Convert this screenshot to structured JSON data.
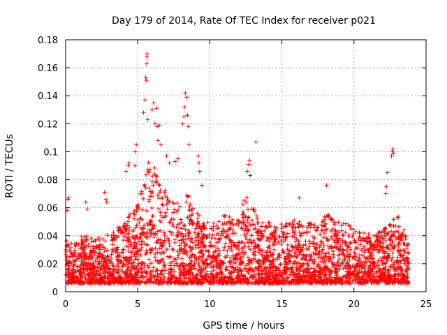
{
  "chart_data": {
    "type": "scatter",
    "title": "Day 179 of 2014, Rate Of TEC Index for receiver p021",
    "xlabel": "GPS time / hours",
    "ylabel": "ROTI / TECUs",
    "xlim": [
      0,
      25
    ],
    "ylim": [
      0,
      0.18
    ],
    "xticks": [
      0,
      5,
      10,
      15,
      20,
      25
    ],
    "yticks": [
      0,
      0.02,
      0.04,
      0.06,
      0.08,
      0.1,
      0.12,
      0.14,
      0.16,
      0.18
    ],
    "ytick_labels": [
      "0",
      "0.02",
      "0.04",
      "0.06",
      "0.08",
      "0.1",
      "0.12",
      "0.14",
      "0.16",
      "0.18"
    ],
    "grid": true,
    "marker": "+",
    "color": "#ff0000",
    "envelope": {
      "hours": [
        0,
        0.5,
        1,
        1.5,
        2,
        2.5,
        3,
        3.5,
        4,
        4.5,
        5,
        5.5,
        6,
        6.5,
        7,
        7.5,
        8,
        8.5,
        9,
        9.5,
        10,
        10.5,
        11,
        11.5,
        12,
        12.5,
        13,
        13.5,
        14,
        14.5,
        15,
        15.5,
        16,
        16.5,
        17,
        17.5,
        18,
        18.5,
        19,
        19.5,
        20,
        20.5,
        21,
        21.5,
        22,
        22.5,
        23,
        23.5,
        23.8
      ],
      "typical_max": [
        0.038,
        0.036,
        0.04,
        0.04,
        0.038,
        0.04,
        0.042,
        0.045,
        0.05,
        0.058,
        0.065,
        0.09,
        0.095,
        0.085,
        0.07,
        0.068,
        0.065,
        0.07,
        0.06,
        0.05,
        0.05,
        0.05,
        0.055,
        0.055,
        0.052,
        0.07,
        0.06,
        0.05,
        0.05,
        0.048,
        0.05,
        0.05,
        0.052,
        0.048,
        0.05,
        0.05,
        0.055,
        0.055,
        0.055,
        0.05,
        0.045,
        0.042,
        0.042,
        0.042,
        0.045,
        0.048,
        0.055,
        0.045,
        0.04
      ]
    },
    "outliers": [
      {
        "x": 0.1,
        "y": 0.058
      },
      {
        "x": 0.15,
        "y": 0.066
      },
      {
        "x": 0.2,
        "y": 0.067
      },
      {
        "x": 1.4,
        "y": 0.064
      },
      {
        "x": 1.5,
        "y": 0.059
      },
      {
        "x": 2.7,
        "y": 0.071
      },
      {
        "x": 2.8,
        "y": 0.066
      },
      {
        "x": 2.85,
        "y": 0.064
      },
      {
        "x": 4.2,
        "y": 0.086
      },
      {
        "x": 4.35,
        "y": 0.09
      },
      {
        "x": 4.4,
        "y": 0.092
      },
      {
        "x": 4.8,
        "y": 0.09
      },
      {
        "x": 4.85,
        "y": 0.1
      },
      {
        "x": 4.9,
        "y": 0.105
      },
      {
        "x": 5.4,
        "y": 0.128
      },
      {
        "x": 5.5,
        "y": 0.137
      },
      {
        "x": 5.55,
        "y": 0.153
      },
      {
        "x": 5.6,
        "y": 0.151
      },
      {
        "x": 5.62,
        "y": 0.163
      },
      {
        "x": 5.63,
        "y": 0.168
      },
      {
        "x": 5.65,
        "y": 0.17
      },
      {
        "x": 5.7,
        "y": 0.123
      },
      {
        "x": 6.0,
        "y": 0.13
      },
      {
        "x": 6.1,
        "y": 0.135
      },
      {
        "x": 6.2,
        "y": 0.12
      },
      {
        "x": 6.3,
        "y": 0.131
      },
      {
        "x": 6.35,
        "y": 0.118
      },
      {
        "x": 6.5,
        "y": 0.119
      },
      {
        "x": 6.4,
        "y": 0.108
      },
      {
        "x": 6.6,
        "y": 0.105
      },
      {
        "x": 7.0,
        "y": 0.097
      },
      {
        "x": 7.2,
        "y": 0.092
      },
      {
        "x": 7.6,
        "y": 0.093
      },
      {
        "x": 7.8,
        "y": 0.095
      },
      {
        "x": 8.1,
        "y": 0.12
      },
      {
        "x": 8.2,
        "y": 0.125
      },
      {
        "x": 8.25,
        "y": 0.132
      },
      {
        "x": 8.3,
        "y": 0.142
      },
      {
        "x": 8.4,
        "y": 0.139
      },
      {
        "x": 8.45,
        "y": 0.126
      },
      {
        "x": 8.5,
        "y": 0.118
      },
      {
        "x": 8.55,
        "y": 0.105
      },
      {
        "x": 9.2,
        "y": 0.097
      },
      {
        "x": 9.25,
        "y": 0.092
      },
      {
        "x": 9.3,
        "y": 0.086
      },
      {
        "x": 9.45,
        "y": 0.076
      },
      {
        "x": 12.6,
        "y": 0.086
      },
      {
        "x": 12.7,
        "y": 0.091
      },
      {
        "x": 12.75,
        "y": 0.094
      },
      {
        "x": 12.8,
        "y": 0.083
      },
      {
        "x": 13.2,
        "y": 0.107
      },
      {
        "x": 16.2,
        "y": 0.067
      },
      {
        "x": 18.1,
        "y": 0.076
      },
      {
        "x": 22.2,
        "y": 0.07
      },
      {
        "x": 22.25,
        "y": 0.075
      },
      {
        "x": 22.3,
        "y": 0.085
      },
      {
        "x": 22.6,
        "y": 0.097
      },
      {
        "x": 22.65,
        "y": 0.1
      },
      {
        "x": 22.7,
        "y": 0.102
      },
      {
        "x": 22.75,
        "y": 0.099
      }
    ]
  }
}
